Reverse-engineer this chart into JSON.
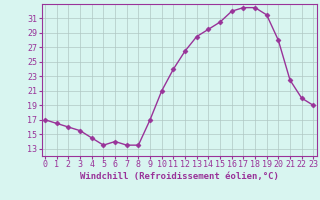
{
  "x": [
    0,
    1,
    2,
    3,
    4,
    5,
    6,
    7,
    8,
    9,
    10,
    11,
    12,
    13,
    14,
    15,
    16,
    17,
    18,
    19,
    20,
    21,
    22,
    23
  ],
  "y": [
    17,
    16.5,
    16,
    15.5,
    14.5,
    13.5,
    14,
    13.5,
    13.5,
    17,
    21,
    24,
    26.5,
    28.5,
    29.5,
    30.5,
    32,
    32.5,
    32.5,
    31.5,
    28,
    22.5,
    20,
    19
  ],
  "line_color": "#993399",
  "marker": "D",
  "markersize": 2.5,
  "linewidth": 1,
  "xlabel": "Windchill (Refroidissement éolien,°C)",
  "xlabel_fontsize": 6.5,
  "ymin": 12,
  "ymax": 33,
  "xmin": -0.3,
  "xmax": 23.3,
  "background_color": "#d8f5f0",
  "grid_color": "#b0c8c4",
  "tick_fontsize": 6,
  "font_color": "#993399"
}
